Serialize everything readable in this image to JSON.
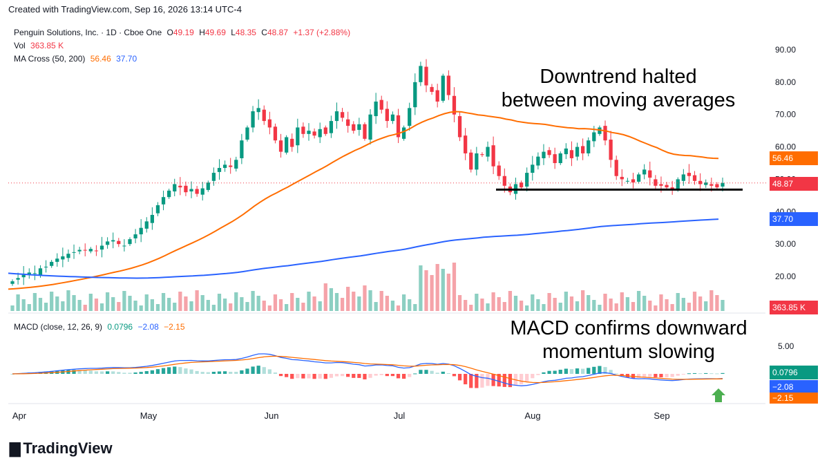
{
  "watermark": "Created with TradingView.com, Sep 16, 2026 13:14 UTC-4",
  "legend": {
    "symbol": "Penguin Solutions, Inc. · 1D · Cboe One",
    "o_label": "O",
    "o_val": "49.19",
    "h_label": "H",
    "h_val": "49.69",
    "l_label": "L",
    "l_val": "48.35",
    "c_label": "C",
    "c_val": "48.87",
    "change": "+1.37 (+2.88%)",
    "vol_label": "Vol",
    "vol_val": "363.85 K",
    "ma_label": "MA Cross (50, 200)",
    "ma50_val": "56.46",
    "ma200_val": "37.70",
    "macd_label": "MACD (close, 12, 26, 9)",
    "macd_hist": "0.0796",
    "macd_line": "−2.08",
    "macd_signal": "−2.15"
  },
  "annotations": {
    "top_1": "Downtrend halted",
    "top_2": "between moving averages",
    "macd_1": "MACD confirms downward",
    "macd_2": "momentum slowing"
  },
  "right_labels": {
    "ma50": "56.46",
    "close": "48.87",
    "ma200": "37.70",
    "volume": "363.85 K",
    "hist": "0.0796",
    "macd": "−2.08",
    "signal": "−2.15"
  },
  "logo": "TradingView",
  "colors": {
    "up": "#089981",
    "down": "#f23645",
    "ma50": "#ff6d00",
    "ma200": "#2962ff",
    "vol_up": "#8ccfc2",
    "vol_down": "#f5a3a9",
    "support": "#000000",
    "arrow": "#4caf50"
  },
  "chart_data": [
    {
      "type": "candlestick",
      "title": "Penguin Solutions, Inc. · 1D · Cboe One",
      "price_ticks": [
        "90.00",
        "80.00",
        "70.00",
        "60.00",
        "50.00",
        "40.00",
        "30.00",
        "20.00"
      ],
      "price_range": [
        14,
        92
      ],
      "x_month_labels": [
        "Apr",
        "May",
        "Jun",
        "Jul",
        "Aug",
        "Sep"
      ],
      "close_series": [
        18.5,
        19.5,
        20.5,
        21.2,
        21.0,
        22.5,
        23.0,
        24.5,
        25.5,
        26.2,
        27.0,
        27.5,
        28.2,
        28.0,
        28.5,
        27.8,
        29.5,
        30.8,
        31.2,
        30.0,
        29.5,
        31.5,
        33.0,
        35.0,
        37.0,
        39.0,
        42.0,
        44.5,
        46.5,
        48.5,
        47.5,
        46.0,
        47.0,
        45.5,
        47.2,
        49.0,
        52.0,
        53.5,
        54.5,
        53.8,
        56.0,
        62.0,
        66.0,
        71.0,
        72.0,
        68.0,
        66.0,
        62.0,
        58.5,
        63.0,
        60.0,
        66.0,
        64.0,
        65.0,
        63.5,
        65.5,
        64.0,
        68.0,
        71.0,
        69.0,
        66.5,
        65.0,
        67.0,
        62.5,
        70.0,
        74.0,
        71.5,
        68.0,
        70.0,
        63.0,
        66.0,
        72.0,
        80.0,
        85.0,
        79.0,
        77.0,
        74.0,
        82.0,
        76.0,
        70.0,
        63.0,
        58.0,
        53.0,
        58.0,
        57.5,
        60.0,
        54.0,
        51.0,
        48.0,
        46.0,
        48.5,
        47.5,
        52.0,
        54.5,
        57.0,
        58.5,
        57.5,
        55.0,
        58.0,
        59.5,
        56.5,
        60.0,
        58.0,
        62.0,
        64.5,
        66.0,
        62.0,
        56.0,
        51.0,
        50.0,
        49.5,
        49.0,
        51.5,
        53.0,
        50.5,
        48.0,
        48.0,
        47.5,
        47.0,
        50.0,
        51.5,
        51.0,
        49.5,
        48.5,
        49.0,
        48.0,
        47.5,
        48.87
      ],
      "volume_label": "363.85 K",
      "ma50_last": 56.46,
      "ma200_last": 37.7,
      "last_close": 48.87,
      "support_level": 46.8,
      "annotation": "Downtrend halted between moving averages"
    },
    {
      "type": "line",
      "title": "MACD (close, 12, 26, 9)",
      "y_ticks": [
        "5.00"
      ],
      "series": [
        {
          "name": "MACD",
          "last": -2.08
        },
        {
          "name": "Signal",
          "last": -2.15
        },
        {
          "name": "Histogram",
          "last": 0.0796
        }
      ],
      "annotation": "MACD confirms downward momentum slowing"
    }
  ]
}
